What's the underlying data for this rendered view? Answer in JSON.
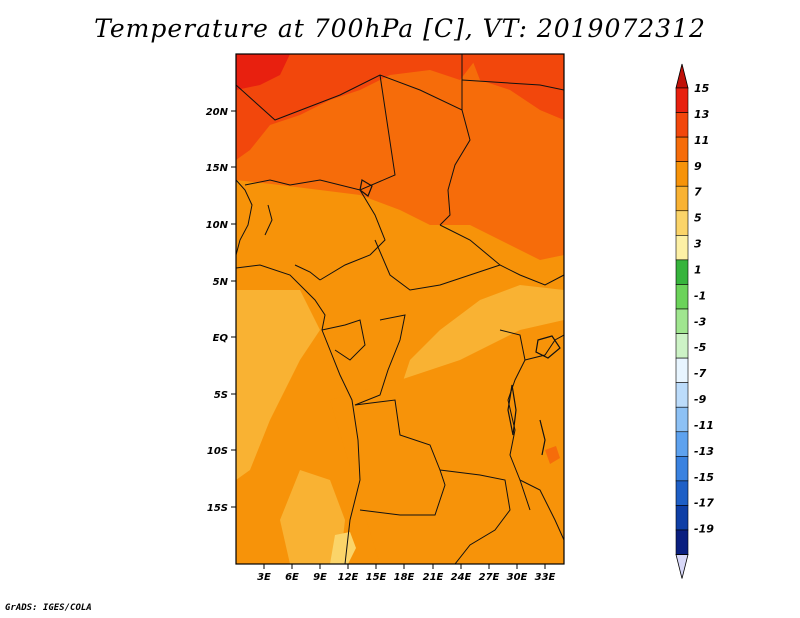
{
  "title": "Temperature at 700hPa [C], VT: 2019072312",
  "credit": "GrADS: IGES/COLA",
  "map": {
    "lat_labels": [
      "20N",
      "15N",
      "10N",
      "5N",
      "EQ",
      "5S",
      "10S",
      "15S"
    ],
    "lon_labels": [
      "3E",
      "6E",
      "9E",
      "12E",
      "15E",
      "18E",
      "21E",
      "24E",
      "27E",
      "30E",
      "33E"
    ]
  },
  "colorbar": {
    "labels": [
      "15",
      "13",
      "11",
      "9",
      "7",
      "5",
      "3",
      "1",
      "-1",
      "-3",
      "-5",
      "-7",
      "-9",
      "-11",
      "-13",
      "-15",
      "-17",
      "-19"
    ],
    "colors": [
      "#e8200f",
      "#f2470c",
      "#f66c0a",
      "#f79309",
      "#f9b233",
      "#fbd469",
      "#fdf0a5",
      "#36b43c",
      "#6bd35a",
      "#a0e68f",
      "#cdf3c6",
      "#e8f5ff",
      "#bcdcfb",
      "#8dc1f5",
      "#5ea2ef",
      "#3a82e0",
      "#1e5fc6",
      "#0f3fa6",
      "#0a1f80"
    ],
    "top_color": "#c01008",
    "bottom_color": "#d8d8f8"
  }
}
